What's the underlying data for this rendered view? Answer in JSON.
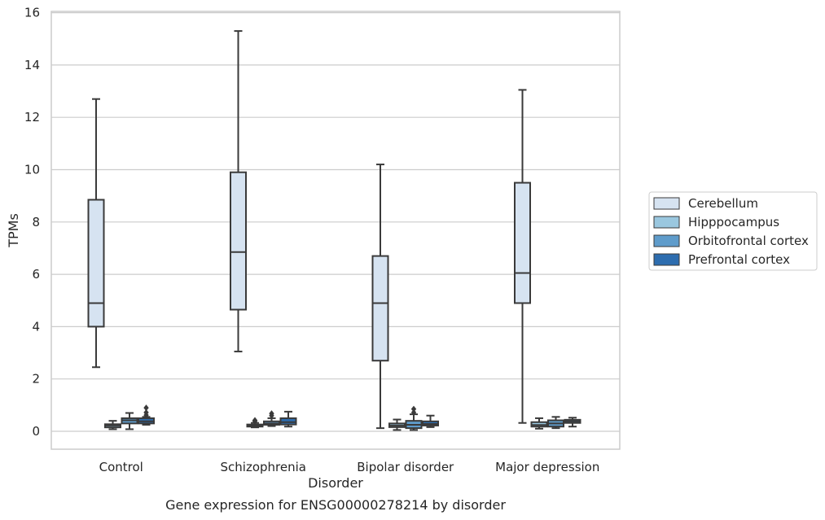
{
  "chart_data": {
    "type": "boxplot",
    "caption": "Gene expression for ENSG00000278214 by disorder",
    "xlabel": "Disorder",
    "ylabel": "TPMs",
    "ylim": [
      -0.7,
      16.05
    ],
    "yticks": [
      0,
      2,
      4,
      6,
      8,
      10,
      12,
      14,
      16
    ],
    "grid": true,
    "legend_position": "right",
    "categories": [
      "Control",
      "Schizophrenia",
      "Bipolar disorder",
      "Major depression"
    ],
    "series": [
      {
        "name": "Cerebellum",
        "color": "#d6e3f1",
        "boxes": [
          {
            "whislo": 2.45,
            "q1": 4.0,
            "med": 4.9,
            "q3": 8.85,
            "whishi": 12.7,
            "fliers": []
          },
          {
            "whislo": 3.05,
            "q1": 4.65,
            "med": 6.85,
            "q3": 9.9,
            "whishi": 15.3,
            "fliers": []
          },
          {
            "whislo": 0.12,
            "q1": 2.7,
            "med": 4.9,
            "q3": 6.7,
            "whishi": 10.2,
            "fliers": []
          },
          {
            "whislo": 0.32,
            "q1": 4.9,
            "med": 6.05,
            "q3": 9.5,
            "whishi": 13.05,
            "fliers": []
          }
        ]
      },
      {
        "name": "Hipppocampus",
        "color": "#9ac7df",
        "boxes": [
          {
            "whislo": 0.08,
            "q1": 0.15,
            "med": 0.22,
            "q3": 0.27,
            "whishi": 0.4,
            "fliers": []
          },
          {
            "whislo": 0.15,
            "q1": 0.18,
            "med": 0.22,
            "q3": 0.26,
            "whishi": 0.32,
            "fliers": [
              0.38,
              0.42
            ]
          },
          {
            "whislo": 0.05,
            "q1": 0.16,
            "med": 0.22,
            "q3": 0.3,
            "whishi": 0.45,
            "fliers": []
          },
          {
            "whislo": 0.1,
            "q1": 0.18,
            "med": 0.24,
            "q3": 0.35,
            "whishi": 0.5,
            "fliers": []
          }
        ]
      },
      {
        "name": "Orbitofrontal cortex",
        "color": "#5f9ccb",
        "boxes": [
          {
            "whislo": 0.08,
            "q1": 0.3,
            "med": 0.42,
            "q3": 0.5,
            "whishi": 0.7,
            "fliers": []
          },
          {
            "whislo": 0.2,
            "q1": 0.25,
            "med": 0.3,
            "q3": 0.38,
            "whishi": 0.5,
            "fliers": [
              0.6,
              0.68
            ]
          },
          {
            "whislo": 0.05,
            "q1": 0.12,
            "med": 0.25,
            "q3": 0.4,
            "whishi": 0.65,
            "fliers": [
              0.72,
              0.85
            ]
          },
          {
            "whislo": 0.12,
            "q1": 0.18,
            "med": 0.3,
            "q3": 0.42,
            "whishi": 0.55,
            "fliers": []
          }
        ]
      },
      {
        "name": "Prefrontal cortex",
        "color": "#2d6daf",
        "boxes": [
          {
            "whislo": 0.25,
            "q1": 0.3,
            "med": 0.38,
            "q3": 0.5,
            "whishi": 0.55,
            "fliers": [
              0.62,
              0.72,
              0.9
            ]
          },
          {
            "whislo": 0.18,
            "q1": 0.26,
            "med": 0.35,
            "q3": 0.5,
            "whishi": 0.75,
            "fliers": []
          },
          {
            "whislo": 0.16,
            "q1": 0.22,
            "med": 0.28,
            "q3": 0.38,
            "whishi": 0.6,
            "fliers": []
          },
          {
            "whislo": 0.18,
            "q1": 0.32,
            "med": 0.38,
            "q3": 0.44,
            "whishi": 0.52,
            "fliers": []
          }
        ]
      }
    ]
  }
}
